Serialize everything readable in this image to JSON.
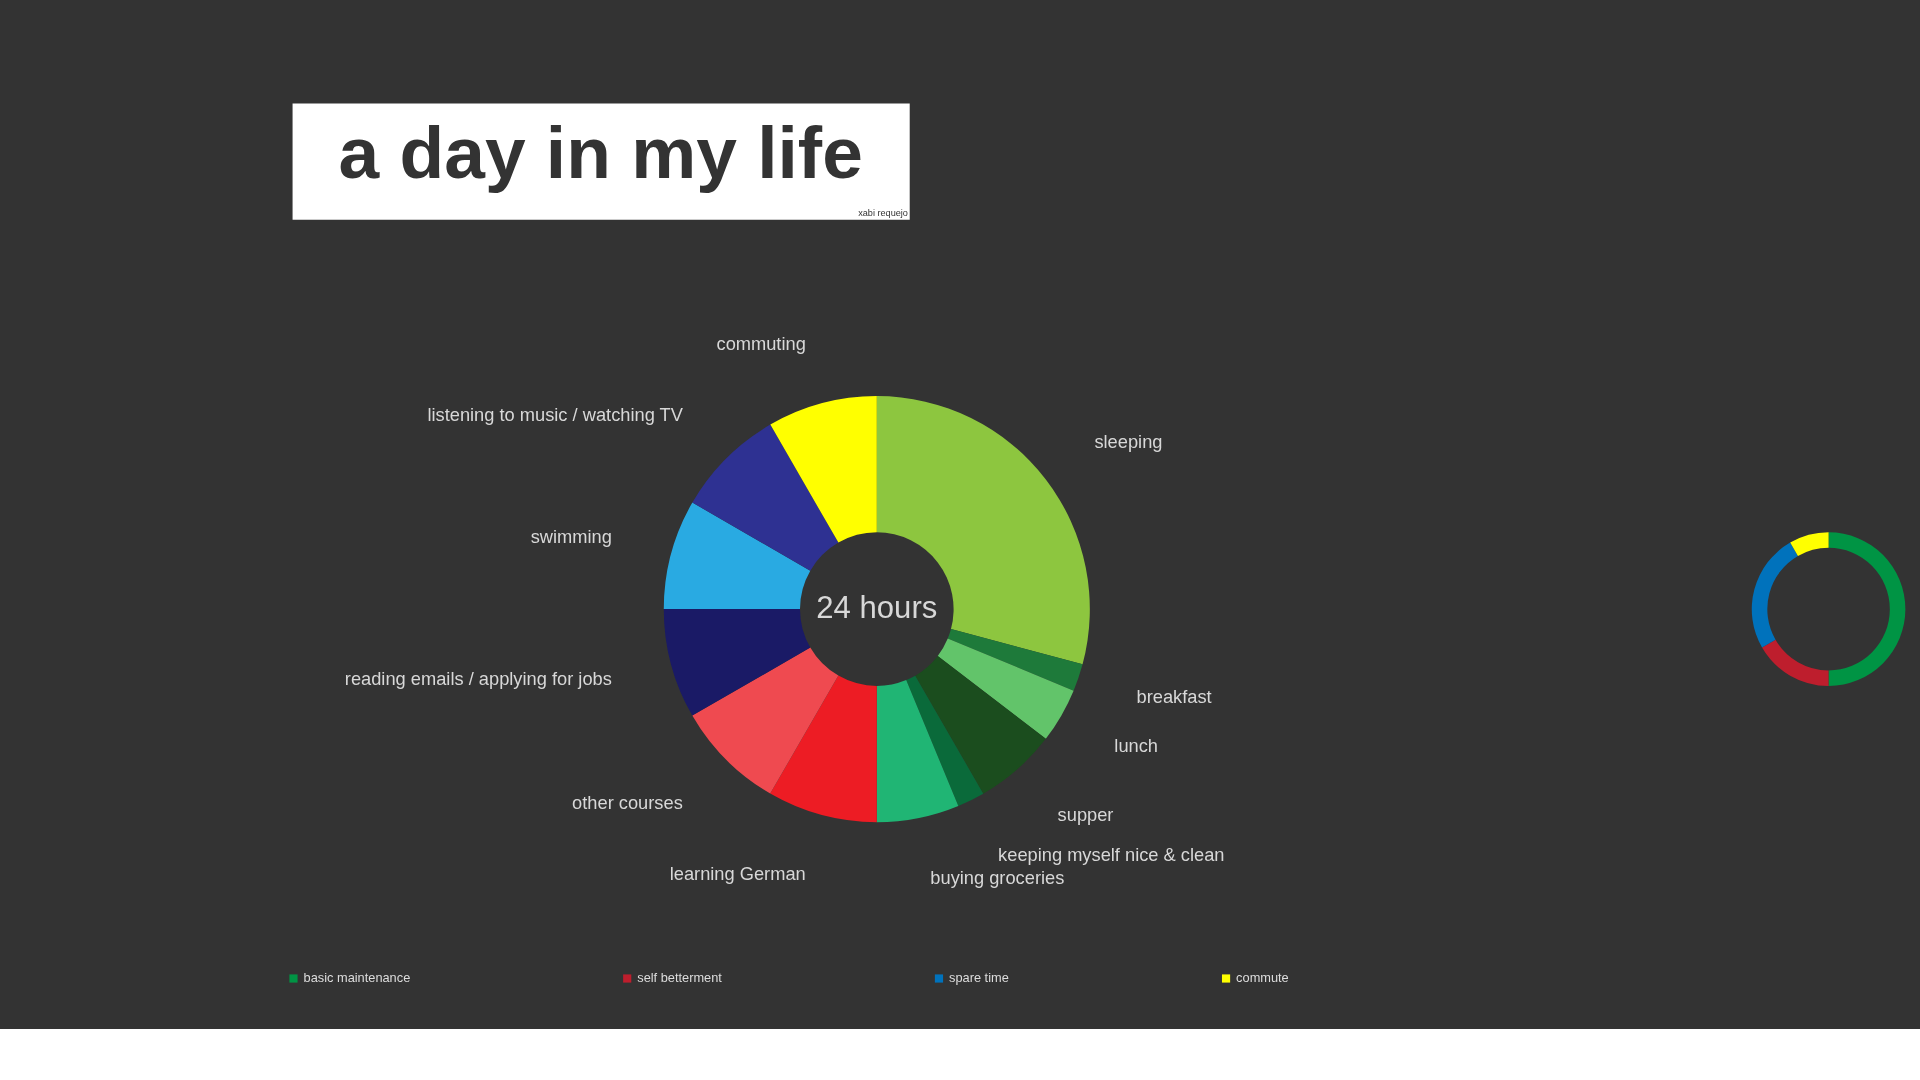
{
  "chart_data": [
    {
      "type": "donut",
      "title": "a day in my life",
      "categories": [
        "sleeping",
        "breakfast",
        "lunch",
        "supper",
        "keeping myself nice & clean",
        "buying groceries",
        "learning German",
        "other courses",
        "reading emails / applying for jobs",
        "swimming",
        "listening to music / watching TV",
        "commuting"
      ],
      "values": [
        29.17,
        2.08,
        4.17,
        6.25,
        2.08,
        6.25,
        8.34,
        8.33,
        8.34,
        8.33,
        8.33,
        8.33
      ],
      "colors": [
        "#8dc63f",
        "#1e7a3a",
        "#62c46a",
        "#1b4d1e",
        "#0a6a3a",
        "#20b574",
        "#ed1c24",
        "#ef4a50",
        "#1a1a66",
        "#29aae2",
        "#2e3192",
        "#ffff00"
      ],
      "annotations": [
        "xabi requejo",
        "24 hours"
      ]
    },
    {
      "type": "donut",
      "categories": [
        "basic maintenance",
        "self betterment",
        "spare time",
        "commute"
      ],
      "values": [
        50,
        16.67,
        25,
        8.33
      ],
      "colors": [
        "#009444",
        "#be1e2d",
        "#0072bc",
        "#ffff00"
      ],
      "legend": "bottom"
    }
  ]
}
